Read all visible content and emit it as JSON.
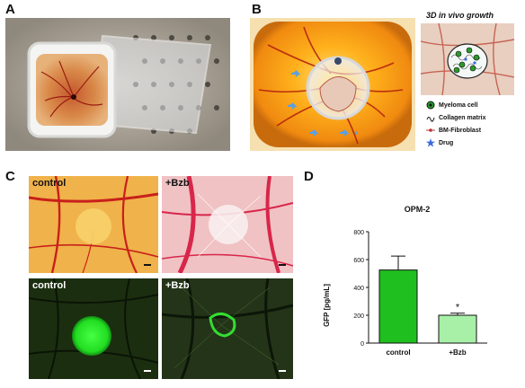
{
  "panels": {
    "A": {
      "letter": "A"
    },
    "B": {
      "letter": "B",
      "inset_title": "3D in vivo growth",
      "legend": [
        {
          "label": "Myeloma cell",
          "icon": "myeloma-cell-icon"
        },
        {
          "label": "Collagen matrix",
          "icon": "collagen-matrix-icon"
        },
        {
          "label": "BM-Fibroblast",
          "icon": "fibroblast-icon"
        },
        {
          "label": "Drug",
          "icon": "drug-star-icon"
        }
      ]
    },
    "C": {
      "letter": "C",
      "images": [
        {
          "label": "control",
          "label_color": "#111111"
        },
        {
          "label": "+Bzb",
          "label_color": "#111111"
        },
        {
          "label": "control",
          "label_color": "#ffffff"
        },
        {
          "label": "+Bzb",
          "label_color": "#ffffff"
        }
      ]
    },
    "D": {
      "letter": "D"
    }
  },
  "colors": {
    "bar_control": "#1fbf1f",
    "bar_bzb": "#a8f0a8",
    "gfp_bright": "#33ff33"
  },
  "chart_data": {
    "type": "bar",
    "title": "OPM-2",
    "categories": [
      "control",
      "+Bzb"
    ],
    "values": [
      525,
      200
    ],
    "errors": [
      100,
      15
    ],
    "significance": [
      "",
      "*"
    ],
    "ylabel": "GFP [pg/mL]",
    "xlabel": "",
    "ylim": [
      0,
      800
    ],
    "yticks": [
      0,
      200,
      400,
      600,
      800
    ],
    "grid": false
  }
}
